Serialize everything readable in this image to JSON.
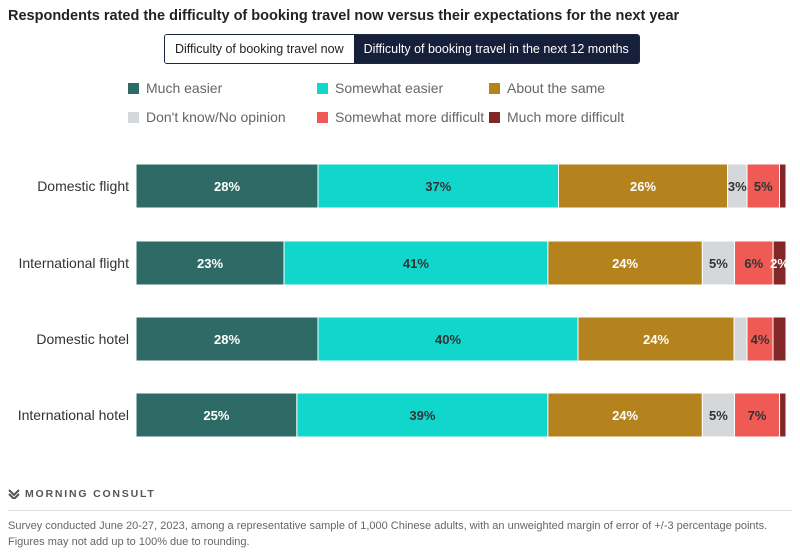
{
  "chart_data": {
    "type": "bar",
    "orientation": "horizontal-stacked",
    "title": "Respondents rated the difficulty of booking travel now versus their expectations for the next year",
    "categories": [
      "Domestic flight",
      "International flight",
      "Domestic hotel",
      "International hotel"
    ],
    "series": [
      {
        "name": "Much easier",
        "color": "#2f6b66",
        "label_color": "#ffffff",
        "values": [
          28,
          23,
          28,
          25
        ],
        "show_label": [
          true,
          true,
          true,
          true
        ]
      },
      {
        "name": "Somewhat easier",
        "color": "#10d6cc",
        "label_color": "#333333",
        "values": [
          37,
          41,
          40,
          39
        ],
        "show_label": [
          true,
          true,
          true,
          true
        ]
      },
      {
        "name": "About the same",
        "color": "#b5831e",
        "label_color": "#ffffff",
        "values": [
          26,
          24,
          24,
          24
        ],
        "show_label": [
          true,
          true,
          true,
          true
        ]
      },
      {
        "name": "Don't know/No opinion",
        "color": "#d5d8da",
        "label_color": "#333333",
        "values": [
          3,
          5,
          2,
          5
        ],
        "show_label": [
          true,
          true,
          false,
          true
        ]
      },
      {
        "name": "Somewhat more difficult",
        "color": "#f05a55",
        "label_color": "#333333",
        "values": [
          5,
          6,
          4,
          7
        ],
        "show_label": [
          true,
          true,
          true,
          true
        ]
      },
      {
        "name": "Much more difficult",
        "color": "#832627",
        "label_color": "#ffffff",
        "values": [
          1,
          2,
          2,
          1
        ],
        "show_label": [
          false,
          true,
          false,
          false
        ]
      }
    ],
    "legend_position": "top",
    "grid": false
  },
  "toggle": {
    "options": [
      "Difficulty of booking travel now",
      "Difficulty of booking travel in the next 12 months"
    ],
    "selected": 1
  },
  "footer": {
    "logo": "MORNING CONSULT",
    "note": "Survey conducted June 20-27, 2023, among a representative sample of 1,000 Chinese adults, with an unweighted margin of error of +/-3 percentage points. Figures may not add up to 100% due to rounding."
  }
}
